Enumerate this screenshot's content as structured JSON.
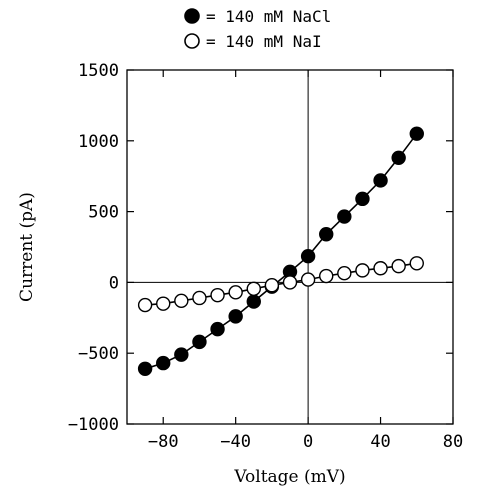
{
  "chart_data": {
    "type": "line",
    "xlabel": "Voltage (mV)",
    "ylabel": "Current (pA)",
    "xlim": [
      -100,
      80
    ],
    "ylim": [
      -1000,
      1500
    ],
    "xticks": [
      -80,
      -40,
      0,
      40,
      80
    ],
    "xtick_labels": [
      "−80",
      "−40",
      "0",
      "40",
      "80"
    ],
    "yticks": [
      -1000,
      -500,
      0,
      500,
      1000,
      1500
    ],
    "ytick_labels": [
      "−1000",
      "−500",
      "0",
      "500",
      "1000",
      "1500"
    ],
    "zero_lines": true,
    "legend": {
      "position": "top-center",
      "entries": [
        {
          "symbol": "filled-circle",
          "label": "= 140 mM NaCl"
        },
        {
          "symbol": "open-circle",
          "label": "= 140 mM NaI"
        }
      ]
    },
    "series": [
      {
        "name": "140 mM NaCl",
        "marker": "filled",
        "x": [
          -90,
          -80,
          -70,
          -60,
          -50,
          -40,
          -30,
          -20,
          -10,
          0,
          10,
          20,
          30,
          40,
          50,
          60
        ],
        "y": [
          -610,
          -570,
          -510,
          -420,
          -330,
          -240,
          -135,
          -30,
          75,
          185,
          340,
          465,
          590,
          720,
          880,
          1050
        ]
      },
      {
        "name": "140 mM NaI",
        "marker": "open",
        "x": [
          -90,
          -80,
          -70,
          -60,
          -50,
          -40,
          -30,
          -20,
          -10,
          0,
          10,
          20,
          30,
          40,
          50,
          60
        ],
        "y": [
          -160,
          -150,
          -130,
          -110,
          -90,
          -70,
          -45,
          -20,
          0,
          20,
          45,
          65,
          85,
          100,
          115,
          135
        ]
      }
    ]
  }
}
